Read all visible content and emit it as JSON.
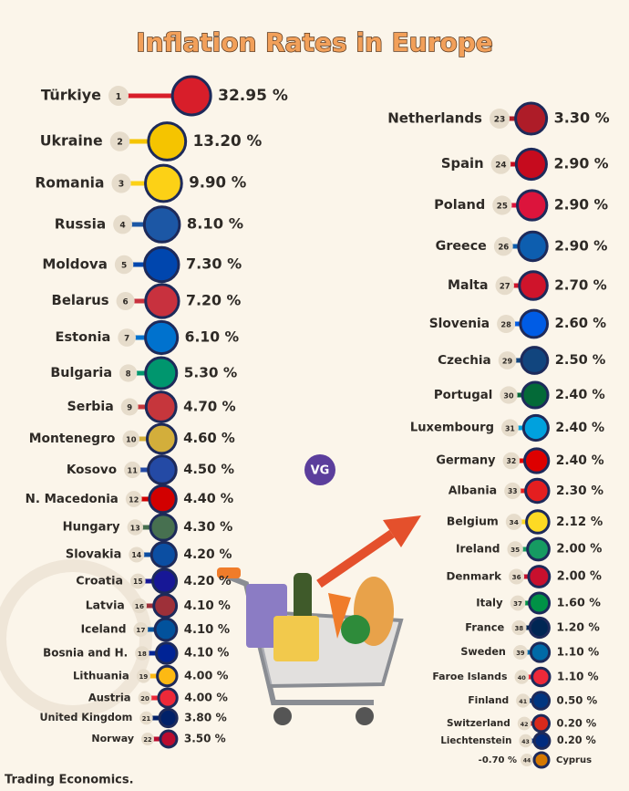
{
  "chart_data": {
    "type": "bar",
    "title": "Inflation Rates in Europe",
    "categories": [
      "Türkiye",
      "Ukraine",
      "Romania",
      "Russia",
      "Moldova",
      "Belarus",
      "Estonia",
      "Bulgaria",
      "Serbia",
      "Montenegro",
      "Kosovo",
      "N. Macedonia",
      "Hungary",
      "Slovakia",
      "Croatia",
      "Latvia",
      "Iceland",
      "Bosnia and H.",
      "Lithuania",
      "Austria",
      "United Kingdom",
      "Norway",
      "Netherlands",
      "Spain",
      "Poland",
      "Greece",
      "Malta",
      "Slovenia",
      "Czechia",
      "Portugal",
      "Luxembourg",
      "Germany",
      "Albania",
      "Belgium",
      "Ireland",
      "Denmark",
      "Italy",
      "France",
      "Sweden",
      "Faroe Islands",
      "Finland",
      "Switzerland",
      "Liechtenstein",
      "Cyprus"
    ],
    "ranks": [
      1,
      2,
      3,
      4,
      5,
      6,
      7,
      8,
      9,
      10,
      11,
      12,
      13,
      14,
      15,
      16,
      17,
      18,
      19,
      20,
      21,
      22,
      23,
      24,
      25,
      26,
      27,
      28,
      29,
      30,
      31,
      32,
      33,
      34,
      35,
      36,
      37,
      38,
      39,
      40,
      41,
      42,
      43,
      44
    ],
    "values": [
      32.95,
      13.2,
      9.9,
      8.1,
      7.3,
      7.2,
      6.1,
      5.3,
      4.7,
      4.6,
      4.5,
      4.4,
      4.3,
      4.2,
      4.2,
      4.1,
      4.1,
      4.1,
      4.0,
      4.0,
      3.8,
      3.5,
      3.3,
      2.9,
      2.9,
      2.9,
      2.7,
      2.6,
      2.5,
      2.4,
      2.4,
      2.4,
      2.3,
      2.12,
      2.0,
      2.0,
      1.6,
      1.2,
      1.1,
      1.1,
      0.5,
      0.2,
      0.2,
      -0.7
    ],
    "value_labels": [
      "32.95 %",
      "13.20 %",
      "9.90 %",
      "8.10 %",
      "7.30 %",
      "7.20 %",
      "6.10 %",
      "5.30 %",
      "4.70 %",
      "4.60 %",
      "4.50 %",
      "4.40 %",
      "4.30 %",
      "4.20 %",
      "4.20 %",
      "4.10 %",
      "4.10 %",
      "4.10 %",
      "4.00 %",
      "4.00 %",
      "3.80 %",
      "3.50 %",
      "3.30 %",
      "2.90 %",
      "2.90 %",
      "2.90 %",
      "2.70 %",
      "2.60 %",
      "2.50 %",
      "2.40 %",
      "2.40 %",
      "2.40 %",
      "2.30 %",
      "2.12 %",
      "2.00 %",
      "2.00 %",
      "1.60 %",
      "1.20 %",
      "1.10 %",
      "1.10 %",
      "0.50 %",
      "0.20 %",
      "0.20 %",
      "-0.70 %"
    ],
    "colors": [
      "#d81e2a",
      "#f5c400",
      "#fcd116",
      "#1c57a5",
      "#0046ae",
      "#c8313e",
      "#0072ce",
      "#00966e",
      "#c6363c",
      "#d3ae3b",
      "#244aa5",
      "#d20000",
      "#477050",
      "#0b4ea2",
      "#171796",
      "#9e3039",
      "#02529c",
      "#002395",
      "#fdb913",
      "#ed2939",
      "#012169",
      "#ba0c2f",
      "#ae1c28",
      "#c60b1e",
      "#dc143c",
      "#0d5eaf",
      "#cf142b",
      "#005ce5",
      "#11457e",
      "#046a38",
      "#00a1de",
      "#dd0000",
      "#e41e20",
      "#fdda24",
      "#169b62",
      "#c8102e",
      "#009246",
      "#002654",
      "#006aa7",
      "#ed2939",
      "#003580",
      "#da291c",
      "#002b7f",
      "#d57800"
    ],
    "source": "Trading Economics."
  }
}
